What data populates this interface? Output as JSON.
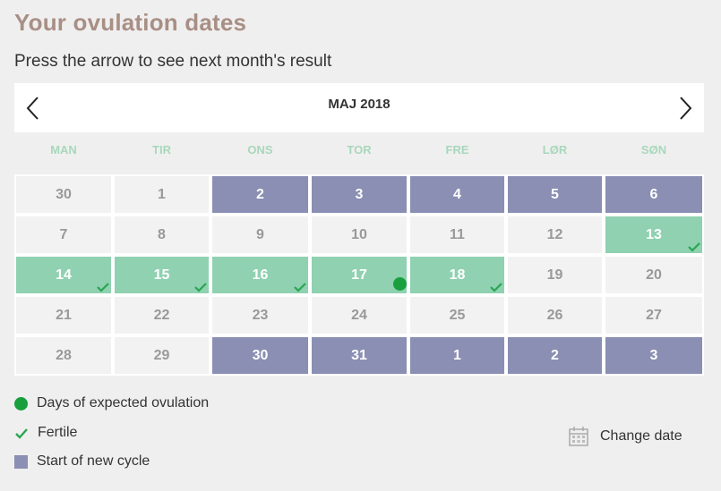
{
  "title": "Your ovulation dates",
  "subtitle": "Press the arrow to see next month's result",
  "month": "MAJ 2018",
  "weekdays": [
    "MAN",
    "TIR",
    "ONS",
    "TOR",
    "FRE",
    "LØR",
    "SØN"
  ],
  "weeks": [
    [
      {
        "d": "30",
        "t": "n"
      },
      {
        "d": "1",
        "t": "n"
      },
      {
        "d": "2",
        "t": "c"
      },
      {
        "d": "3",
        "t": "c"
      },
      {
        "d": "4",
        "t": "c"
      },
      {
        "d": "5",
        "t": "c"
      },
      {
        "d": "6",
        "t": "c"
      }
    ],
    [
      {
        "d": "7",
        "t": "n"
      },
      {
        "d": "8",
        "t": "n"
      },
      {
        "d": "9",
        "t": "n"
      },
      {
        "d": "10",
        "t": "n"
      },
      {
        "d": "11",
        "t": "n"
      },
      {
        "d": "12",
        "t": "n"
      },
      {
        "d": "13",
        "t": "f"
      }
    ],
    [
      {
        "d": "14",
        "t": "f"
      },
      {
        "d": "15",
        "t": "f"
      },
      {
        "d": "16",
        "t": "f"
      },
      {
        "d": "17",
        "t": "o"
      },
      {
        "d": "18",
        "t": "f"
      },
      {
        "d": "19",
        "t": "n"
      },
      {
        "d": "20",
        "t": "n"
      }
    ],
    [
      {
        "d": "21",
        "t": "n"
      },
      {
        "d": "22",
        "t": "n"
      },
      {
        "d": "23",
        "t": "n"
      },
      {
        "d": "24",
        "t": "n"
      },
      {
        "d": "25",
        "t": "n"
      },
      {
        "d": "26",
        "t": "n"
      },
      {
        "d": "27",
        "t": "n"
      }
    ],
    [
      {
        "d": "28",
        "t": "n"
      },
      {
        "d": "29",
        "t": "n"
      },
      {
        "d": "30",
        "t": "c"
      },
      {
        "d": "31",
        "t": "c"
      },
      {
        "d": "1",
        "t": "c"
      },
      {
        "d": "2",
        "t": "c"
      },
      {
        "d": "3",
        "t": "c"
      }
    ]
  ],
  "legend": {
    "ovulation": "Days of expected ovulation",
    "fertile": "Fertile",
    "cycle": "Start of new cycle"
  },
  "change_date": "Change date",
  "colors": {
    "cycle": "#8a8fb3",
    "fertile": "#8fd1b1",
    "ovulation": "#1a9f3f",
    "title": "#a88f85"
  }
}
